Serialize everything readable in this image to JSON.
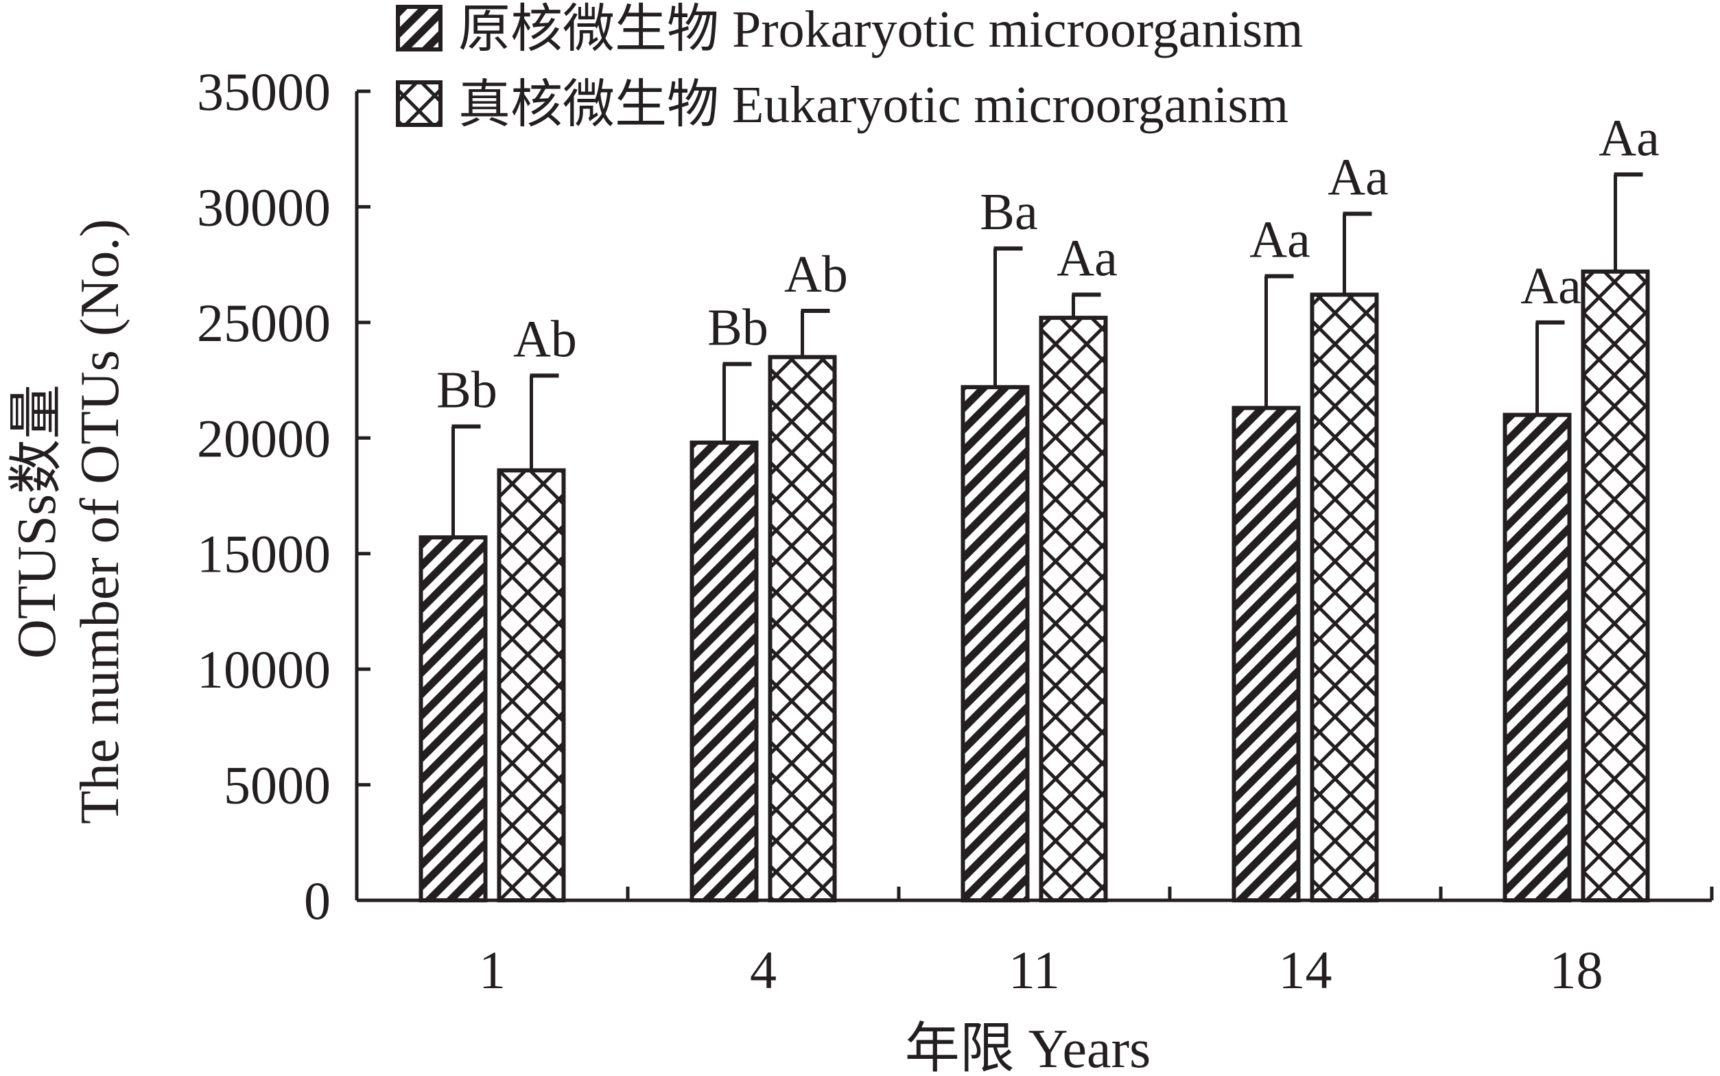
{
  "chart_data": {
    "type": "bar",
    "title": "",
    "categories": [
      "1",
      "4",
      "11",
      "14",
      "18"
    ],
    "series": [
      {
        "name": "原核微生物 Prokaryotic microorganism",
        "pattern": "diagonal-hatch",
        "values": [
          15700,
          19800,
          22200,
          21300,
          21000
        ],
        "errors": [
          4800,
          3400,
          6000,
          5700,
          4000
        ],
        "labels": [
          "Bb",
          "Bb",
          "Ba",
          "Aa",
          "Aa"
        ]
      },
      {
        "name": "真核微生物 Eukaryotic microorganism",
        "pattern": "cross-hatch",
        "values": [
          18600,
          23500,
          25200,
          26200,
          27200
        ],
        "errors": [
          4100,
          2000,
          1000,
          3500,
          4200
        ],
        "labels": [
          "Ab",
          "Ab",
          "Aa",
          "Aa",
          "Aa"
        ]
      }
    ],
    "xlabel": "年限 Years",
    "ylabel": [
      "OTUSs数量",
      "The number of OTUs (No.)"
    ],
    "ylim": [
      0,
      35000
    ],
    "yticks": [
      "0",
      "5000",
      "10000",
      "15000",
      "20000",
      "25000",
      "30000",
      "35000"
    ],
    "grid": false,
    "legend_position": "top",
    "colors": {
      "ink": "#231f20",
      "fill": "#ffffff"
    }
  }
}
